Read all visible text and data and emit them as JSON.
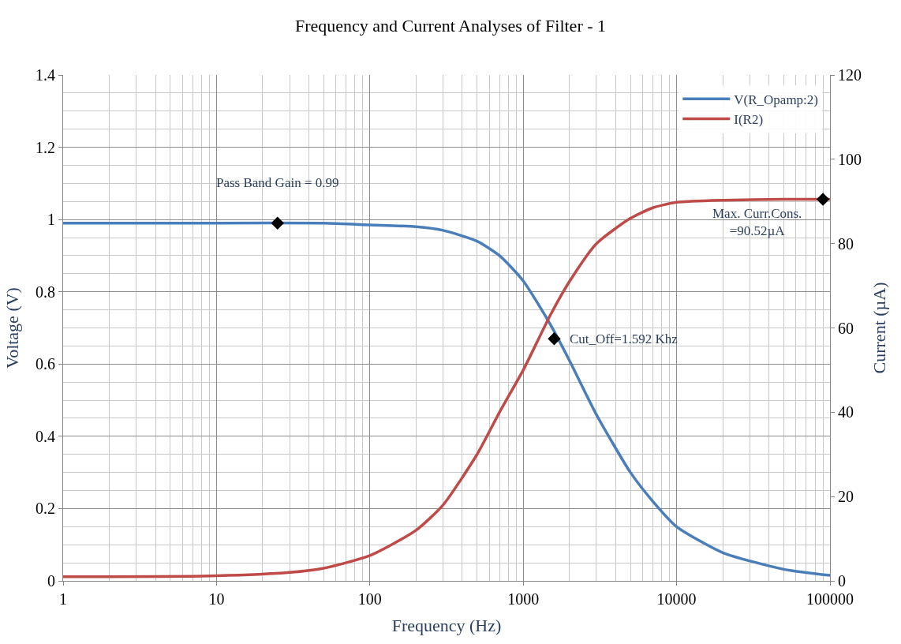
{
  "chart_data": {
    "type": "line",
    "title": "Frequency and Current Analyses of Filter - 1",
    "xlabel": "Frequency (Hz)",
    "ylabel": "Voltage (V)",
    "y2label": "Current (µA)",
    "log": "x",
    "xlim": [
      1,
      100000
    ],
    "xticks": [
      1,
      10,
      100,
      1000,
      10000,
      100000
    ],
    "ylim": [
      0,
      1.4
    ],
    "yticks": [
      0,
      0.2,
      0.4,
      0.6,
      0.8,
      1,
      1.2,
      1.4
    ],
    "y2lim": [
      0,
      120
    ],
    "y2ticks": [
      0,
      20,
      40,
      60,
      80,
      100,
      120
    ],
    "grid": true,
    "legend": "top right",
    "marker": "none",
    "line_style": "solid",
    "series": [
      {
        "name": "V(R_Opamp:2)",
        "color": "#4a7ebb",
        "x": [
          1,
          10,
          50,
          100,
          200,
          300,
          500,
          700,
          1000,
          1500,
          2000,
          3000,
          5000,
          7000,
          10000,
          20000,
          50000,
          100000
        ],
        "values": [
          0.99,
          0.99,
          0.99,
          0.985,
          0.98,
          0.97,
          0.94,
          0.9,
          0.83,
          0.71,
          0.61,
          0.46,
          0.3,
          0.22,
          0.15,
          0.078,
          0.032,
          0.015
        ]
      },
      {
        "name": "I(R2)",
        "color": "#be4b48",
        "axis": "y2",
        "x": [
          1,
          10,
          30,
          50,
          100,
          200,
          300,
          500,
          700,
          1000,
          1500,
          2000,
          3000,
          5000,
          7000,
          10000,
          20000,
          50000,
          100000
        ],
        "values": [
          1.0,
          1.2,
          2,
          3,
          6,
          12,
          18,
          30,
          40,
          50,
          63,
          71,
          80,
          86,
          88.5,
          89.8,
          90.3,
          90.5,
          90.5
        ]
      },
      {
        "type": "scatter",
        "marker": "diamond",
        "color": "#000000",
        "x": [
          25,
          1592
        ],
        "values": [
          0.99,
          0.67
        ]
      },
      {
        "type": "scatter",
        "marker": "diamond",
        "color": "#000000",
        "axis": "y2",
        "x": [
          90000
        ],
        "values": [
          90.5
        ]
      }
    ],
    "annotations": [
      {
        "text": "Pass Band Gain = 0.99",
        "x": 25,
        "y": 0.99
      },
      {
        "text": "Cut_Off=1.592 Khz",
        "x": 1592,
        "y": 0.67
      },
      {
        "text": "Max. Curr.Cons.\n=90.52µA",
        "x": 90000,
        "y": 1.06
      }
    ]
  }
}
